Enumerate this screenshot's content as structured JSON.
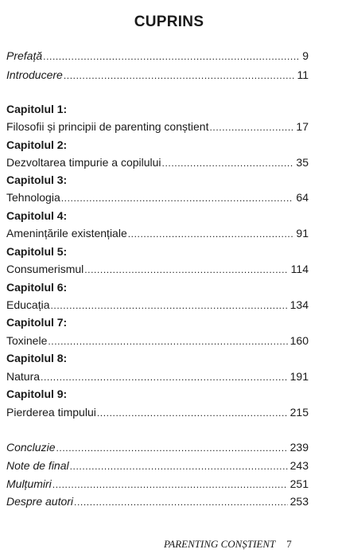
{
  "title": "CUPRINS",
  "front": [
    {
      "label": "Prefață",
      "page": "9"
    },
    {
      "label": "Introducere",
      "page": "11"
    }
  ],
  "chapters": [
    {
      "heading": "Capitolul 1:",
      "label": "Filosofii și principii de parenting conștient",
      "page": "17"
    },
    {
      "heading": "Capitolul 2:",
      "label": "Dezvoltarea timpurie a copilului",
      "page": "35"
    },
    {
      "heading": "Capitolul 3:",
      "label": "Tehnologia",
      "page": "64"
    },
    {
      "heading": "Capitolul 4:",
      "label": "Amenințările existențiale",
      "page": "91"
    },
    {
      "heading": "Capitolul 5:",
      "label": "Consumerismul",
      "page": "114"
    },
    {
      "heading": "Capitolul 6:",
      "label": "Educația",
      "page": "134"
    },
    {
      "heading": "Capitolul 7:",
      "label": "Toxinele",
      "page": "160"
    },
    {
      "heading": "Capitolul 8:",
      "label": "Natura",
      "page": "191"
    },
    {
      "heading": "Capitolul 9:",
      "label": "Pierderea timpului",
      "page": "215"
    }
  ],
  "back": [
    {
      "label": "Concluzie",
      "page": "239"
    },
    {
      "label": "Note de final",
      "page": "243"
    },
    {
      "label": "Mulțumiri",
      "page": "251"
    },
    {
      "label": "Despre autori",
      "page": "253"
    }
  ],
  "footer": {
    "running_title": "PARENTING CONȘTIENT",
    "page_number": "7"
  }
}
